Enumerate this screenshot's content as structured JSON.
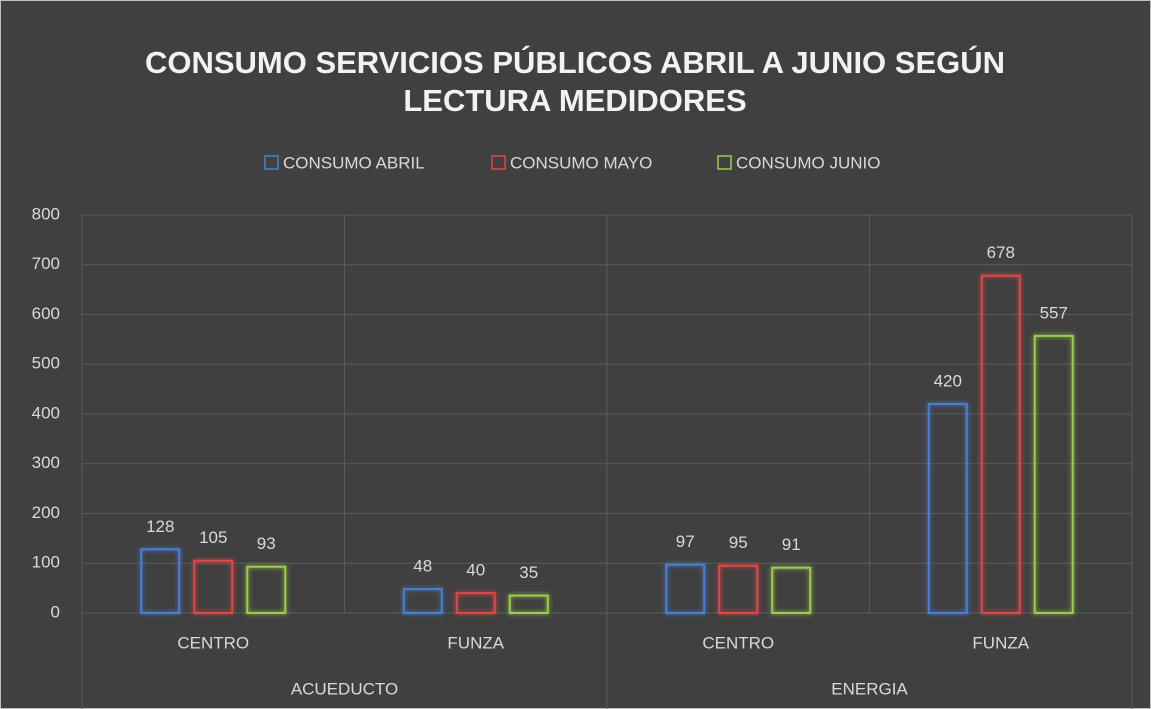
{
  "chart_data": {
    "type": "bar",
    "title": "CONSUMO SERVICIOS PÚBLICOS ABRIL A JUNIO SEGÚN LECTURA MEDIDORES",
    "groups": [
      {
        "name": "ACUEDUCTO",
        "categories": [
          "CENTRO",
          "FUNZA"
        ]
      },
      {
        "name": "ENERGIA",
        "categories": [
          "CENTRO",
          "FUNZA"
        ]
      }
    ],
    "series": [
      {
        "name": "CONSUMO ABRIL",
        "color": "#4a7fd4",
        "values": [
          128,
          48,
          97,
          420
        ]
      },
      {
        "name": "CONSUMO MAYO",
        "color": "#e04646",
        "values": [
          105,
          40,
          95,
          678
        ]
      },
      {
        "name": "CONSUMO JUNIO",
        "color": "#9acd4a",
        "values": [
          93,
          35,
          91,
          557
        ]
      }
    ],
    "ylim": [
      0,
      800
    ],
    "yticks": [
      0,
      100,
      200,
      300,
      400,
      500,
      600,
      700,
      800
    ],
    "grid": true,
    "legend": "top"
  }
}
